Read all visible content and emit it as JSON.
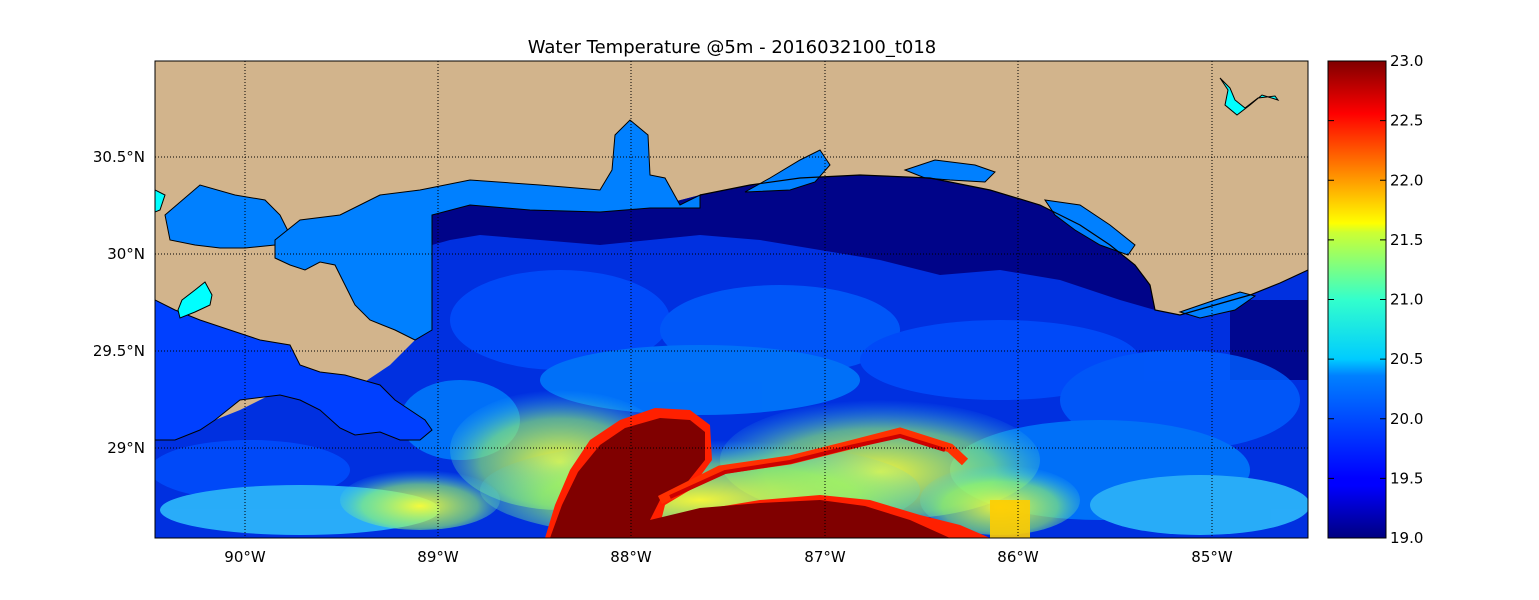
{
  "title": "Water Temperature @5m - 2016032100_t018",
  "map": {
    "lon_range": [
      -90.5,
      -84.5
    ],
    "lat_range": [
      28.55,
      31.0
    ],
    "lon_ticks": [
      {
        "value": -90,
        "label": "90°W"
      },
      {
        "value": -89,
        "label": "89°W"
      },
      {
        "value": -88,
        "label": "88°W"
      },
      {
        "value": -87,
        "label": "87°W"
      },
      {
        "value": -86,
        "label": "86°W"
      },
      {
        "value": -85,
        "label": "85°W"
      }
    ],
    "lat_ticks": [
      {
        "value": 30.5,
        "label": "30.5°N"
      },
      {
        "value": 30.0,
        "label": "30°N"
      },
      {
        "value": 29.5,
        "label": "29.5°N"
      },
      {
        "value": 29.0,
        "label": "29°N"
      }
    ],
    "grid": true,
    "land_color": "#d2b48c",
    "inland_water_color": "#0080ff"
  },
  "colorbar": {
    "min": 19.0,
    "max": 23.0,
    "colormap": "jet",
    "ticks": [
      "19.0",
      "19.5",
      "20.0",
      "20.5",
      "21.0",
      "21.5",
      "22.0",
      "22.5",
      "23.0"
    ]
  }
}
